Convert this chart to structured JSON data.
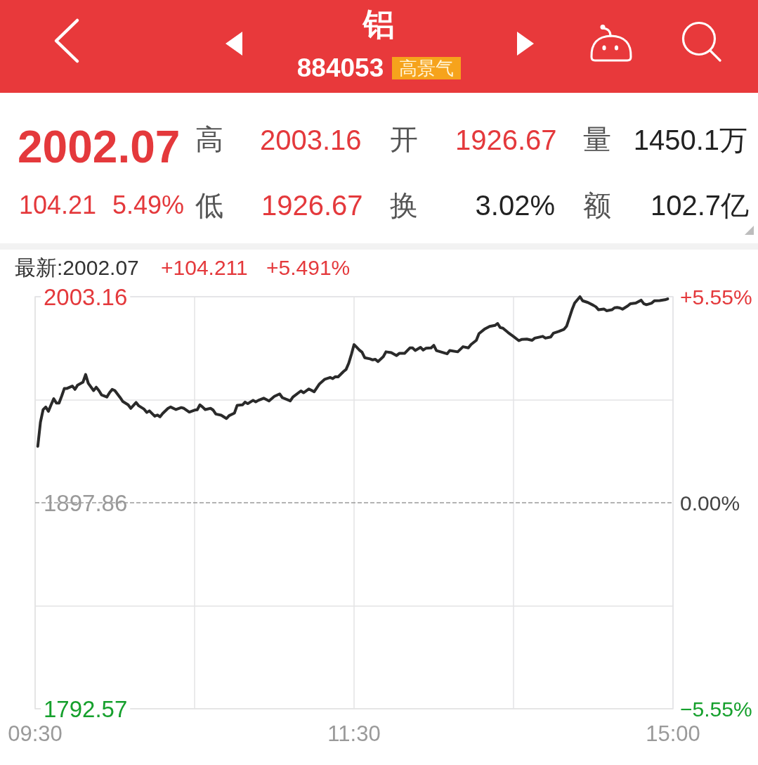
{
  "chart_data": {
    "type": "line",
    "title": "铝",
    "subtitle": "884053",
    "annotations": [
      "高景气",
      "2002.07",
      "高",
      "2003.16",
      "开",
      "1926.67",
      "量",
      "1450.1万",
      "104.21",
      "5.49%",
      "低",
      "1926.67",
      "换",
      "3.02%",
      "额",
      "102.7亿",
      "最新:2002.07",
      "+104.211",
      "+5.491%"
    ],
    "categories": [
      "09:30",
      null,
      null,
      null,
      null,
      null,
      null,
      null,
      null,
      null,
      null,
      null,
      null,
      null,
      null,
      null,
      null,
      null,
      null,
      null,
      null,
      null,
      null,
      null,
      null,
      null,
      null,
      null,
      null,
      null,
      null,
      null,
      null,
      null,
      null,
      null,
      null,
      null,
      null,
      null,
      null,
      null,
      null,
      null,
      null,
      null,
      null,
      null,
      null,
      null,
      null,
      null,
      null,
      null,
      null,
      null,
      null,
      null,
      null,
      null,
      null,
      null,
      null,
      null,
      null,
      null,
      null,
      null,
      null,
      null,
      null,
      null,
      null,
      null,
      null,
      null,
      null,
      null,
      null,
      null,
      null,
      null,
      null,
      null,
      null,
      null,
      null,
      null,
      null,
      null,
      null,
      null,
      null,
      null,
      null,
      null,
      null,
      null,
      null,
      null,
      null,
      null,
      null,
      null,
      null,
      null,
      null,
      null,
      null,
      null,
      null,
      null,
      null,
      null,
      null,
      null,
      null,
      null,
      null,
      null,
      "11:30",
      null,
      null,
      null,
      null,
      null,
      null,
      null,
      null,
      null,
      null,
      null,
      null,
      null,
      null,
      null,
      null,
      null,
      null,
      null,
      null,
      null,
      null,
      null,
      null,
      null,
      null,
      null,
      null,
      null,
      null,
      null,
      null,
      null,
      null,
      null,
      null,
      null,
      null,
      null,
      null,
      null,
      null,
      null,
      null,
      null,
      null,
      null,
      null,
      null,
      null,
      null,
      null,
      null,
      null,
      null,
      null,
      null,
      null,
      null,
      null,
      null,
      null,
      null,
      null,
      null,
      null,
      null,
      null,
      null,
      null,
      null,
      null,
      null,
      null,
      null,
      null,
      null,
      null,
      null,
      null,
      null,
      null,
      null,
      null,
      null,
      null,
      null,
      null,
      null,
      null,
      null,
      null,
      null,
      null,
      null,
      null,
      null,
      null,
      null,
      null,
      null,
      null,
      null,
      null,
      null,
      null,
      null,
      null,
      null,
      null,
      null,
      null,
      null,
      null,
      null,
      null,
      null,
      null,
      null,
      "15:00"
    ],
    "values": [
      null,
      1926.67,
      1939.0,
      1945.4,
      1946.8,
      1944.6,
      1947.9,
      1951.0,
      1948.8,
      1948.8,
      1952.4,
      1956.3,
      1956.3,
      null,
      1957.5,
      1955.8,
      1958.0,
      null,
      1959.5,
      1963.4,
      1958.9,
      null,
      1955.2,
      1956.9,
      1955.2,
      1953.0,
      null,
      1951.9,
      1954.1,
      1955.8,
      1955.2,
      null,
      1951.6,
      1949.6,
      null,
      1947.9,
      1946.1,
      null,
      1949.1,
      1947.4,
      null,
      1945.7,
      1944.0,
      1944.8,
      null,
      1942.1,
      1942.7,
      1941.8,
      1943.5,
      null,
      1946.1,
      1946.8,
      null,
      1945.5,
      null,
      1946.5,
      1946.1,
      null,
      1944.2,
      null,
      1945.2,
      1945.4,
      1947.9,
      1946.8,
      1945.5,
      null,
      1946.1,
      1945.2,
      1943.2,
      null,
      1942.6,
      null,
      1940.9,
      1942.4,
      null,
      1943.7,
      1947.6,
      null,
      1947.9,
      1949.3,
      1948.5,
      null,
      1950.2,
      1949.4,
      1950.2,
      null,
      1951.3,
      null,
      1949.9,
      null,
      1952.2,
      null,
      1953.5,
      1951.6,
      null,
      null,
      1949.9,
      1951.9,
      null,
      null,
      1955.0,
      1954.1,
      null,
      1956.0,
      null,
      1954.6,
      null,
      1958.6,
      null,
      1961.0,
      null,
      1961.9,
      1961.3,
      1962.3,
      1962.2,
      null,
      1964.9,
      1966.0,
      1969.2,
      1973.7,
      1978.7,
      null,
      1975.9,
      1974.8,
      1972.0,
      null,
      1971.4,
      1970.9,
      1971.2,
      1970.0,
      null,
      1972.5,
      1975.0,
      null,
      1974.6,
      null,
      1973.1,
      1974.2,
      null,
      1974.2,
      null,
      1977.0,
      1977.0,
      1975.7,
      null,
      1977.3,
      1975.9,
      1976.8,
      null,
      1977.0,
      1978.3,
      1975.6,
      null,
      1974.8,
      null,
      1974.0,
      1975.7,
      null,
      null,
      1975.0,
      null,
      1977.6,
      null,
      1977.0,
      1978.7,
      null,
      1980.9,
      1984.3,
      null,
      1986.5,
      null,
      1988.0,
      null,
      1988.5,
      1989.5,
      1987.4,
      1987.1,
      null,
      1984.8,
      null,
      1982.8,
      null,
      1980.7,
      1981.3,
      null,
      1981.5,
      null,
      1980.9,
      1982.0,
      null,
      null,
      1982.9,
      1982.0,
      null,
      1982.6,
      1984.5,
      null,
      1985.4,
      null,
      1986.5,
      1988.2,
      null,
      1996.5,
      1999.9,
      null,
      2003.16,
      2001.1,
      null,
      2000.2,
      null,
      1998.8,
      1998.0,
      1996.5,
      null,
      1996.9,
      1996.0,
      null,
      1996.5,
      1997.5,
      1997.7,
      1997.4,
      1996.8,
      null,
      1998.5,
      1999.6,
      null,
      1999.9,
      null,
      2001.4,
      1999.6,
      1999.1,
      null,
      1999.9,
      2001.1,
      null,
      2001.2,
      null,
      2001.6,
      2002.07,
      null,
      null
    ],
    "color": "#2a2a2a",
    "marker": "none",
    "line_style": "solid",
    "ylim": [
      1792.57,
      2003.16
    ],
    "yticks": [
      1792.57,
      {
        "value": 1845.22,
        "label": null
      },
      1897.86,
      {
        "value": 1950.51,
        "label": null
      },
      2003.16
    ],
    "y2lim": [
      -5.55,
      5.55
    ],
    "y2ticks": [
      {
        "value": -5.55,
        "label": "−5.55%"
      },
      {
        "value": 0,
        "label": "0.00%"
      },
      {
        "value": 5.55,
        "label": "+5.55%"
      }
    ],
    "ref_lines": [
      {
        "axis": "y",
        "value": 1897.86,
        "color": "#9a9a9a",
        "line_style": "dashed"
      }
    ],
    "grid": true
  }
}
